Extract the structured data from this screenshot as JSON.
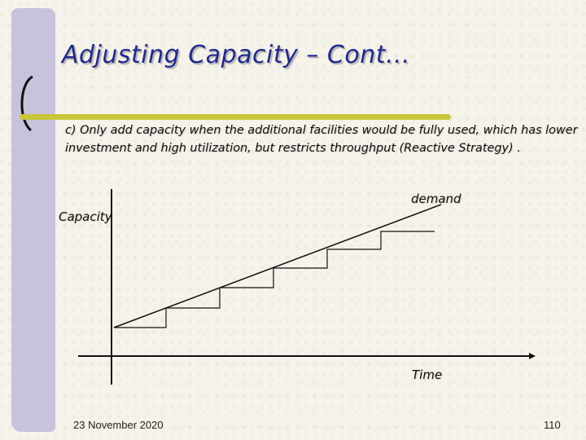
{
  "slide": {
    "title": "Adjusting Capacity – Cont...",
    "body": "c) Only add capacity when the additional facilities would be fully used, which has lower investment and high utilization, but restricts throughput (Reactive Strategy) .",
    "footer_date": "23 November 2020",
    "page_number": "110"
  },
  "diagram": {
    "y_axis_label": "Capacity",
    "x_axis_label": "Time",
    "demand_label": "demand",
    "capacity_steps": 6
  },
  "colors": {
    "title": "#1f2a8f",
    "accent_band": "#c9c2dc",
    "underline": "#c8c63a"
  }
}
